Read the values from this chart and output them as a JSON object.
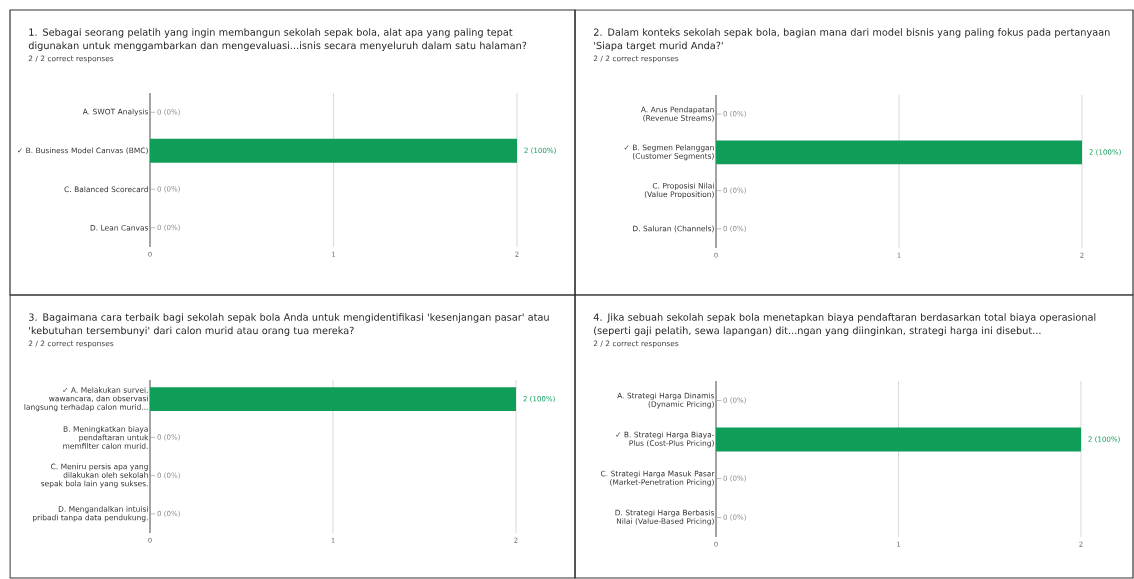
{
  "chart_data": [
    {
      "type": "bar",
      "orientation": "horizontal",
      "title": "1. Sebagai seorang pelatih yang ingin membangun sekolah sepak bola, alat apa yang paling tepat digunakan untuk menggambarkan dan mengevaluasi...isnis secara menyeluruh dalam satu halaman?",
      "subtitle": "2 / 2 correct responses",
      "categories": [
        "A. SWOT Analysis",
        "✓ B. Business Model Canvas (BMC)",
        "C. Balanced Scorecard",
        "D. Lean Canvas"
      ],
      "values": [
        0,
        2,
        0,
        0
      ],
      "color": "#0f9d58",
      "xlim": [
        0,
        2
      ],
      "xticks": [
        0,
        1,
        2
      ],
      "grid": "x",
      "value_labels": [
        "0 (0%)",
        "2 (100%)",
        "0 (0%)",
        "0 (0%)"
      ]
    },
    {
      "type": "bar",
      "orientation": "horizontal",
      "title": "2. Dalam konteks sekolah sepak bola, bagian mana dari model bisnis yang paling fokus pada pertanyaan 'Siapa target murid Anda?'",
      "subtitle": "2 / 2 correct responses",
      "categories": [
        "A. Arus Pendapatan (Revenue Streams)",
        "✓ B. Segmen Pelanggan (Customer Segments)",
        "C. Proposisi Nilai (Value Proposition)",
        "D. Saluran (Channels)"
      ],
      "values": [
        0,
        2,
        0,
        0
      ],
      "color": "#0f9d58",
      "xlim": [
        0,
        2
      ],
      "xticks": [
        0,
        1,
        2
      ],
      "grid": "x",
      "value_labels": [
        "0 (0%)",
        "2 (100%)",
        "0 (0%)",
        "0 (0%)"
      ]
    },
    {
      "type": "bar",
      "orientation": "horizontal",
      "title": "3. Bagaimana cara terbaik bagi sekolah sepak bola Anda untuk mengidentifikasi 'kesenjangan pasar' atau 'kebutuhan tersembunyi' dari calon murid atau orang tua mereka?",
      "subtitle": "2 / 2 correct responses",
      "categories": [
        "✓ A. Melakukan survei, wawancara, dan observasi langsung terhadap calon murid...",
        "B. Meningkatkan biaya pendaftaran untuk memfilter calon murid.",
        "C. Meniru persis apa yang dilakukan oleh sekolah sepak bola lain yang sukses.",
        "D. Mengandalkan intuisi pribadi tanpa data pendukung."
      ],
      "values": [
        2,
        0,
        0,
        0
      ],
      "color": "#0f9d58",
      "xlim": [
        0,
        2
      ],
      "xticks": [
        0,
        1,
        2
      ],
      "grid": "x",
      "value_labels": [
        "2 (100%)",
        "0 (0%)",
        "0 (0%)",
        "0 (0%)"
      ]
    },
    {
      "type": "bar",
      "orientation": "horizontal",
      "title": "4. Jika sebuah sekolah sepak bola menetapkan biaya pendaftaran berdasarkan total biaya operasional (seperti gaji pelatih, sewa lapangan) dit...ngan yang diinginkan, strategi harga ini disebut...",
      "subtitle": "2 / 2 correct responses",
      "categories": [
        "A. Strategi Harga Dinamis (Dynamic Pricing)",
        "✓ B. Strategi Harga Biaya-Plus (Cost-Plus Pricing)",
        "C. Strategi Harga Masuk Pasar (Market-Penetration Pricing)",
        "D. Strategi Harga Berbasis Nilai (Value-Based Pricing)"
      ],
      "values": [
        0,
        2,
        0,
        0
      ],
      "color": "#0f9d58",
      "xlim": [
        0,
        2
      ],
      "xticks": [
        0,
        1,
        2
      ],
      "grid": "x",
      "value_labels": [
        "0 (0%)",
        "2 (100%)",
        "0 (0%)",
        "0 (0%)"
      ]
    }
  ]
}
